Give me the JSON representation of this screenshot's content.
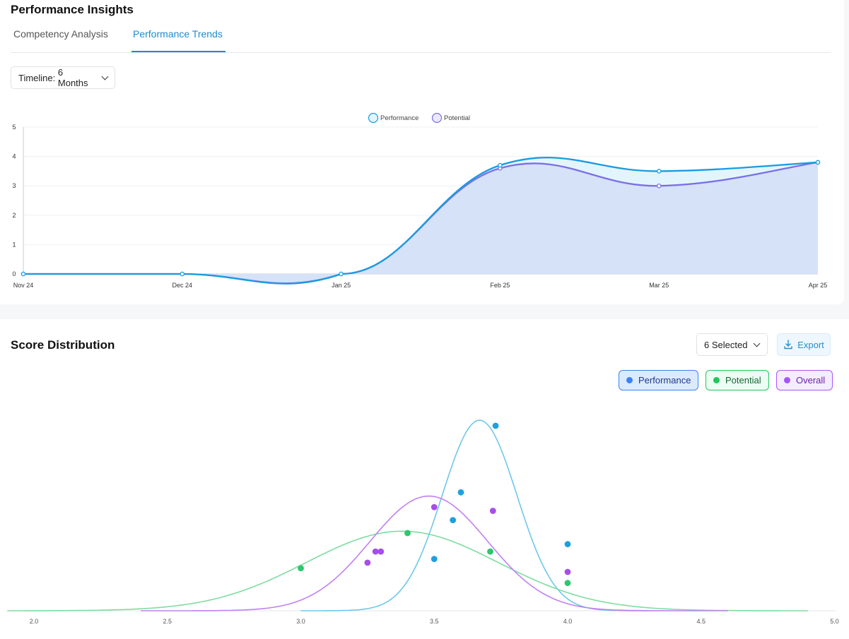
{
  "insights": {
    "title": "Performance Insights",
    "tabs": [
      {
        "label": "Competency Analysis",
        "active": false
      },
      {
        "label": "Performance Trends",
        "active": true
      }
    ],
    "timeline_label": "Timeline:",
    "timeline_value": "6 Months"
  },
  "distribution": {
    "title": "Score Distribution",
    "selected_label": "6 Selected",
    "export_label": "Export",
    "pills": [
      {
        "label": "Performance",
        "color": "#3b82f6",
        "bg": "#dbeafe",
        "border": "#3b82f6"
      },
      {
        "label": "Potential",
        "color": "#22c55e",
        "bg": "#ecfdf3",
        "border": "#22c55e"
      },
      {
        "label": "Overall",
        "color": "#a855f7",
        "bg": "#f5edff",
        "border": "#a855f7"
      }
    ]
  },
  "chart_data": [
    {
      "type": "area",
      "categories": [
        "Nov 24",
        "Dec 24",
        "Jan 25",
        "Feb 25",
        "Mar 25",
        "Apr 25"
      ],
      "ylim": [
        0,
        5
      ],
      "yticks": [
        "0",
        "1",
        "2",
        "3",
        "4",
        "5"
      ],
      "legend_position": "top-center",
      "grid": true,
      "series": [
        {
          "name": "Performance",
          "color": "#1a9be0",
          "fill": "#e3f5fc",
          "values": [
            0,
            0,
            0,
            3.7,
            3.5,
            3.8
          ]
        },
        {
          "name": "Potential",
          "color": "#7b6fe6",
          "fill": "#d6e2f8",
          "values": [
            0,
            0,
            0,
            3.6,
            3.0,
            3.8
          ]
        }
      ]
    },
    {
      "type": "scatter",
      "xlim": [
        1.9,
        5.0
      ],
      "xticks": [
        "2.0",
        "2.5",
        "3.0",
        "3.5",
        "4.0",
        "4.5",
        "5.0"
      ],
      "series": [
        {
          "name": "Performance",
          "color": "#1ea0dc",
          "curve_color": "#6fc7ea",
          "mean": 3.67,
          "sd": 0.14,
          "x_range": [
            3.0,
            4.3
          ],
          "points": [
            [
              3.73,
              1.0
            ],
            [
              3.6,
              0.64
            ],
            [
              3.57,
              0.49
            ],
            [
              4.0,
              0.36
            ],
            [
              3.5,
              0.28
            ]
          ]
        },
        {
          "name": "Potential",
          "color": "#2dc76d",
          "curve_color": "#7ddc9f",
          "mean": 3.38,
          "sd": 0.36,
          "x_range": [
            1.9,
            4.9
          ],
          "points": [
            [
              3.4,
              0.42
            ],
            [
              3.0,
              0.23
            ],
            [
              3.71,
              0.32
            ],
            [
              4.0,
              0.15
            ]
          ]
        },
        {
          "name": "Overall",
          "color": "#a64ee8",
          "curve_color": "#c180ef",
          "mean": 3.48,
          "sd": 0.22,
          "x_range": [
            2.4,
            4.6
          ],
          "points": [
            [
              3.5,
              0.56
            ],
            [
              3.72,
              0.54
            ],
            [
              3.28,
              0.32
            ],
            [
              3.3,
              0.32
            ],
            [
              3.25,
              0.26
            ],
            [
              4.0,
              0.21
            ]
          ]
        }
      ]
    }
  ]
}
